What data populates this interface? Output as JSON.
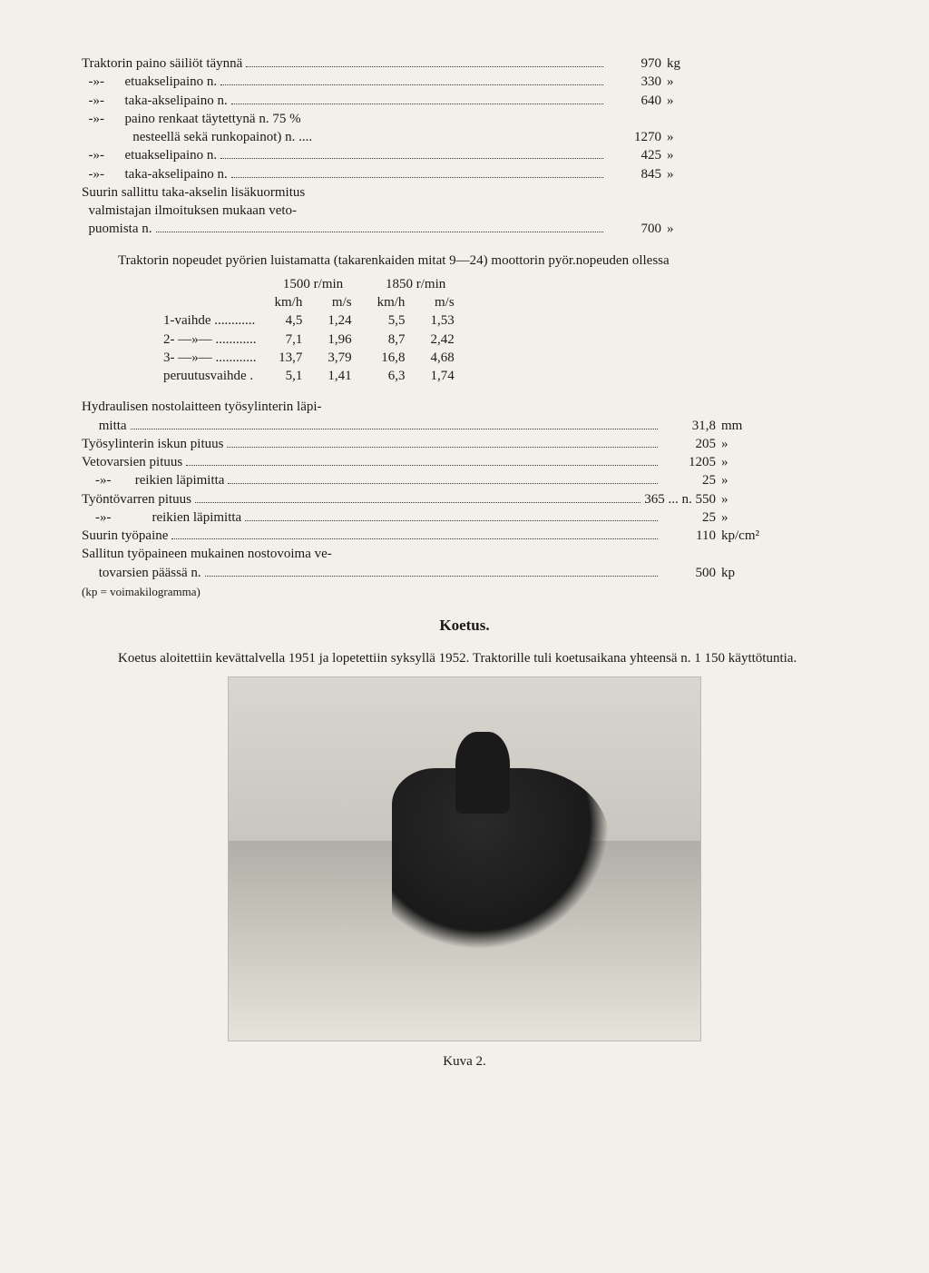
{
  "specs1": [
    {
      "label": "Traktorin paino säiliöt täynnä",
      "val": "970",
      "unit": "kg"
    },
    {
      "label": "  -»-      etuakselipaino n.",
      "val": "330",
      "unit": "»"
    },
    {
      "label": "  -»-      taka-akselipaino n.",
      "val": "640",
      "unit": "»"
    },
    {
      "label": "  -»-      paino renkaat täytettynä n. 75 %",
      "val": "",
      "unit": ""
    },
    {
      "label": "               nesteellä sekä runkopainot) n. ....",
      "val": "1270",
      "unit": "»",
      "nodots": true
    },
    {
      "label": "  -»-      etuakselipaino n.",
      "val": "425",
      "unit": "»"
    },
    {
      "label": "  -»-      taka-akselipaino n.",
      "val": "845",
      "unit": "»"
    },
    {
      "label": "Suurin sallittu taka-akselin lisäkuormitus",
      "val": "",
      "unit": ""
    },
    {
      "label": "  valmistajan ilmoituksen mukaan veto-",
      "val": "",
      "unit": ""
    },
    {
      "label": "  puomista n.",
      "val": "700",
      "unit": "»"
    }
  ],
  "para1": "Traktorin nopeudet pyörien luistamatta (takarenkaiden mitat 9—24) moottorin pyör.nopeuden ollessa",
  "speed": {
    "head1": "1500 r/min",
    "head2": "1850 r/min",
    "sub": [
      "km/h",
      "m/s",
      "km/h",
      "m/s"
    ],
    "rows": [
      {
        "lbl": "1-vaihde ............",
        "c": [
          "4,5",
          "1,24",
          "5,5",
          "1,53"
        ]
      },
      {
        "lbl": "2- —»— ............",
        "c": [
          "7,1",
          "1,96",
          "8,7",
          "2,42"
        ]
      },
      {
        "lbl": "3- —»— ............",
        "c": [
          "13,7",
          "3,79",
          "16,8",
          "4,68"
        ]
      },
      {
        "lbl": "peruutusvaihde .",
        "c": [
          "5,1",
          "1,41",
          "6,3",
          "1,74"
        ]
      }
    ]
  },
  "specs2": [
    {
      "label": "Hydraulisen nostolaitteen työsylinterin läpi-",
      "val": "",
      "unit": ""
    },
    {
      "label": "     mitta",
      "val": "31,8",
      "unit": "mm"
    },
    {
      "label": "Työsylinterin iskun pituus",
      "val": "205",
      "unit": "»"
    },
    {
      "label": "Vetovarsien pituus",
      "val": "1205",
      "unit": "»"
    },
    {
      "label": "    -»-       reikien läpimitta",
      "val": "25",
      "unit": "»"
    },
    {
      "label": "Työntövarren pituus",
      "val": "365 ... n. 550",
      "unit": "»"
    },
    {
      "label": "    -»-            reikien läpimitta",
      "val": "25",
      "unit": "»"
    },
    {
      "label": "Suurin työpaine",
      "val": "110",
      "unit": "kp/cm²"
    },
    {
      "label": "Sallitun työpaineen mukainen nostovoima ve-",
      "val": "",
      "unit": ""
    },
    {
      "label": "     tovarsien päässä n.",
      "val": "500",
      "unit": "kp"
    }
  ],
  "foot": "(kp = voimakilogramma)",
  "koetus_title": "Koetus.",
  "para2": "Koetus aloitettiin kevättalvella 1951 ja lopetettiin syksyllä 1952. Traktorille tuli koetusaikana yhteensä n. 1 150 käyttötuntia.",
  "kuva": "Kuva 2."
}
